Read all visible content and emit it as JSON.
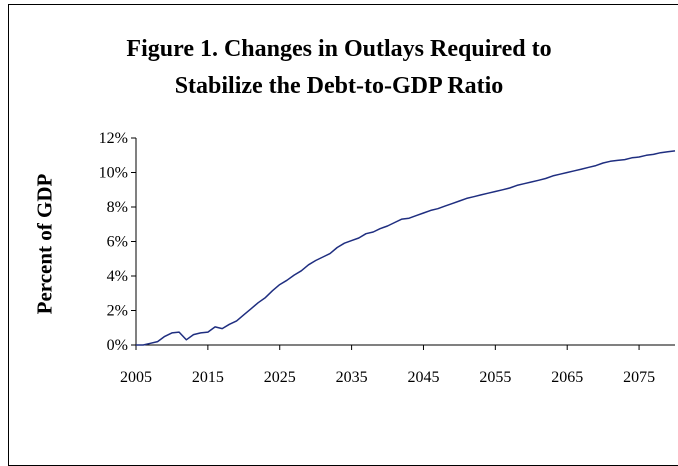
{
  "chart_data": {
    "type": "line",
    "title_line1": "Figure 1. Changes in Outlays Required to",
    "title_line2": "Stabilize the Debt-to-GDP Ratio",
    "xlabel": "",
    "ylabel": "Percent of GDP",
    "xlim": [
      2005,
      2080
    ],
    "ylim": [
      0,
      12
    ],
    "x_ticks": [
      "2005",
      "2015",
      "2025",
      "2035",
      "2045",
      "2055",
      "2065",
      "2075"
    ],
    "y_ticks": [
      "0%",
      "2%",
      "4%",
      "6%",
      "8%",
      "10%",
      "12%"
    ],
    "grid": false,
    "legend": "none",
    "line_color": "#1f2e80",
    "series": [
      {
        "x": [
          2005,
          2006,
          2007,
          2008,
          2009,
          2010,
          2011,
          2012,
          2013,
          2014,
          2015,
          2016,
          2017,
          2018,
          2019,
          2020,
          2021,
          2022,
          2023,
          2024,
          2025,
          2026,
          2027,
          2028,
          2029,
          2030,
          2031,
          2032,
          2033,
          2034,
          2035,
          2036,
          2037,
          2038,
          2039,
          2040,
          2041,
          2042,
          2043,
          2044,
          2045,
          2046,
          2047,
          2048,
          2049,
          2050,
          2051,
          2052,
          2053,
          2054,
          2055,
          2056,
          2057,
          2058,
          2059,
          2060,
          2061,
          2062,
          2063,
          2064,
          2065,
          2066,
          2067,
          2068,
          2069,
          2070,
          2071,
          2072,
          2073,
          2074,
          2075,
          2076,
          2077,
          2078,
          2079,
          2080
        ],
        "values": [
          0.0,
          0.0,
          0.1,
          0.2,
          0.5,
          0.7,
          0.75,
          0.3,
          0.6,
          0.7,
          0.75,
          1.05,
          0.95,
          1.2,
          1.4,
          1.75,
          2.1,
          2.45,
          2.75,
          3.15,
          3.5,
          3.75,
          4.05,
          4.3,
          4.65,
          4.9,
          5.1,
          5.3,
          5.65,
          5.9,
          6.05,
          6.2,
          6.45,
          6.55,
          6.75,
          6.9,
          7.1,
          7.3,
          7.35,
          7.5,
          7.65,
          7.8,
          7.9,
          8.05,
          8.2,
          8.35,
          8.5,
          8.6,
          8.7,
          8.8,
          8.9,
          9.0,
          9.1,
          9.25,
          9.35,
          9.45,
          9.55,
          9.65,
          9.8,
          9.9,
          10.0,
          10.1,
          10.2,
          10.3,
          10.4,
          10.55,
          10.65,
          10.7,
          10.75,
          10.85,
          10.9,
          11.0,
          11.05,
          11.15,
          11.2,
          11.25
        ]
      }
    ]
  }
}
